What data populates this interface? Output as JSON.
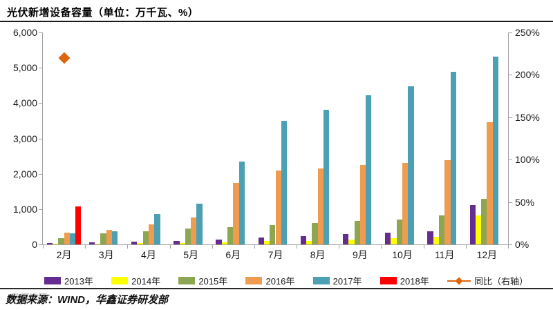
{
  "title": "光伏新增设备容量（单位：万千瓦、%）",
  "source": "数据来源：WIND，华鑫证券研发部",
  "watermark": "数据来源：",
  "chart_data": {
    "type": "bar",
    "title": "光伏新增设备容量（单位：万千瓦、%）",
    "categories": [
      "2月",
      "3月",
      "4月",
      "5月",
      "6月",
      "7月",
      "8月",
      "9月",
      "10月",
      "11月",
      "12月"
    ],
    "series": [
      {
        "name": "2013年",
        "color": "#662D91",
        "values": [
          40,
          60,
          80,
          100,
          130,
          195,
          225,
          295,
          330,
          380,
          1120
        ]
      },
      {
        "name": "2014年",
        "color": "#FFFF00",
        "values": [
          15,
          20,
          30,
          30,
          60,
          95,
          100,
          140,
          170,
          210,
          815
        ]
      },
      {
        "name": "2015年",
        "color": "#8DA652",
        "values": [
          170,
          320,
          380,
          440,
          490,
          550,
          610,
          660,
          710,
          815,
          1285
        ]
      },
      {
        "name": "2016年",
        "color": "#EF9C50",
        "values": [
          340,
          420,
          570,
          760,
          1740,
          2100,
          2150,
          2240,
          2310,
          2385,
          3455
        ]
      },
      {
        "name": "2017年",
        "color": "#4BA0B4",
        "values": [
          310,
          380,
          860,
          1150,
          2350,
          3490,
          3820,
          4230,
          4470,
          4890,
          5320
        ]
      },
      {
        "name": "2018年",
        "color": "#FE0000",
        "values": [
          1080,
          null,
          null,
          null,
          null,
          null,
          null,
          null,
          null,
          null,
          null
        ]
      }
    ],
    "yoy_series": {
      "name": "同比（右轴）",
      "color": "#DF650D",
      "values": [
        220,
        null,
        null,
        null,
        null,
        null,
        null,
        null,
        null,
        null,
        null
      ]
    },
    "left_axis": {
      "min": 0,
      "max": 6000,
      "step": 1000,
      "labels": [
        "0",
        "1,000",
        "2,000",
        "3,000",
        "4,000",
        "5,000",
        "6,000"
      ]
    },
    "right_axis": {
      "min": 0,
      "max": 250,
      "step": 50,
      "labels": [
        "0%",
        "50%",
        "100%",
        "150%",
        "200%",
        "250%"
      ]
    },
    "grid": false,
    "legend_position": "bottom"
  }
}
